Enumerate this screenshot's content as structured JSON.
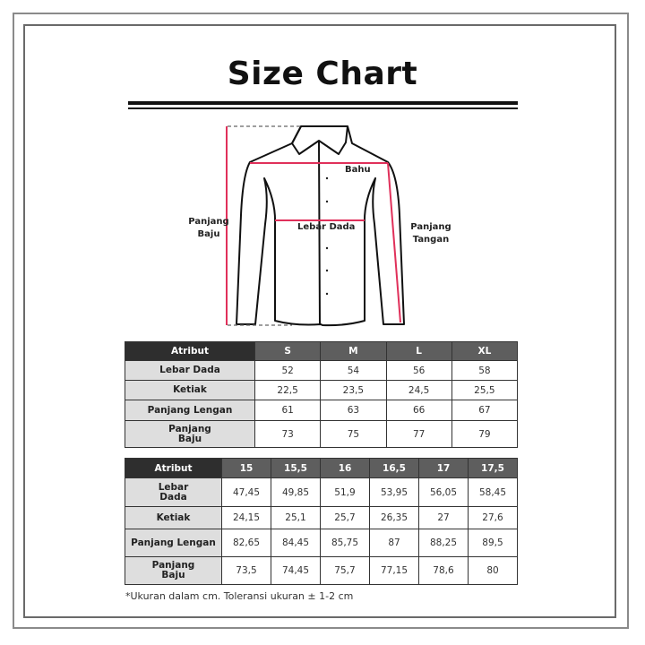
{
  "title": "Size Chart",
  "diagram": {
    "shoulder": "Bahu",
    "chest": "Lebar Dada",
    "body_length": [
      "Panjang",
      "Baju"
    ],
    "sleeve_length": [
      "Panjang",
      "Tangan"
    ],
    "measure_color": "#e0305a"
  },
  "table1": {
    "headers": [
      "Atribut",
      "S",
      "M",
      "L",
      "XL"
    ],
    "rows": [
      {
        "label": "Lebar Dada",
        "values": [
          "52",
          "54",
          "56",
          "58"
        ]
      },
      {
        "label": "Ketiak",
        "values": [
          "22,5",
          "23,5",
          "24,5",
          "25,5"
        ]
      },
      {
        "label": "Panjang Lengan",
        "values": [
          "61",
          "63",
          "66",
          "67"
        ]
      },
      {
        "label": "Panjang\nBaju",
        "values": [
          "73",
          "75",
          "77",
          "79"
        ]
      }
    ]
  },
  "table2": {
    "headers": [
      "Atribut",
      "15",
      "15,5",
      "16",
      "16,5",
      "17",
      "17,5"
    ],
    "rows": [
      {
        "label": "Lebar\nDada",
        "values": [
          "47,45",
          "49,85",
          "51,9",
          "53,95",
          "56,05",
          "58,45"
        ]
      },
      {
        "label": "Ketiak",
        "values": [
          "24,15",
          "25,1",
          "25,7",
          "26,35",
          "27",
          "27,6"
        ]
      },
      {
        "label": "Panjang Lengan",
        "values": [
          "82,65",
          "84,45",
          "85,75",
          "87",
          "88,25",
          "89,5"
        ]
      },
      {
        "label": "Panjang\nBaju",
        "values": [
          "73,5",
          "74,45",
          "75,7",
          "77,15",
          "78,6",
          "80"
        ]
      }
    ]
  },
  "footnote": "*Ukuran dalam cm. Toleransi ukuran ± 1-2 cm"
}
